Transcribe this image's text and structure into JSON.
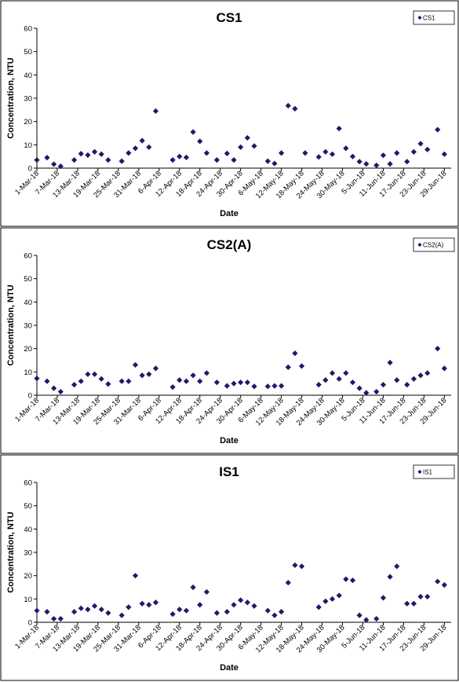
{
  "chart_data": [
    {
      "type": "scatter",
      "title": "CS1",
      "xlabel": "Date",
      "ylabel": "Concentration, NTU",
      "ylim": [
        0,
        60
      ],
      "yticks": [
        0,
        10,
        20,
        30,
        40,
        50,
        60
      ],
      "xlim": [
        "2018-03-01",
        "2018-07-01"
      ],
      "xtick_labels": [
        "1-Mar-18",
        "7-Mar-18",
        "13-Mar-18",
        "19-Mar-18",
        "25-Mar-18",
        "31-Mar-18",
        "6-Apr-18",
        "12-Apr-18",
        "18-Apr-18",
        "24-Apr-18",
        "30-Apr-18",
        "6-May-18",
        "12-May-18",
        "18-May-18",
        "24-May-18",
        "30-May-18",
        "5-Jun-18",
        "11-Jun-18",
        "17-Jun-18",
        "23-Jun-18",
        "29-Jun-18"
      ],
      "grid": false,
      "legend_position": "top-right",
      "marker_color": "#1f1a6b",
      "series": [
        {
          "name": "CS1",
          "x": [
            "2018-03-01",
            "2018-03-04",
            "2018-03-06",
            "2018-03-08",
            "2018-03-12",
            "2018-03-14",
            "2018-03-16",
            "2018-03-18",
            "2018-03-20",
            "2018-03-22",
            "2018-03-26",
            "2018-03-28",
            "2018-03-30",
            "2018-04-01",
            "2018-04-03",
            "2018-04-05",
            "2018-04-10",
            "2018-04-12",
            "2018-04-14",
            "2018-04-16",
            "2018-04-18",
            "2018-04-20",
            "2018-04-23",
            "2018-04-26",
            "2018-04-28",
            "2018-04-30",
            "2018-05-02",
            "2018-05-04",
            "2018-05-08",
            "2018-05-10",
            "2018-05-12",
            "2018-05-14",
            "2018-05-16",
            "2018-05-19",
            "2018-05-23",
            "2018-05-25",
            "2018-05-27",
            "2018-05-29",
            "2018-05-31",
            "2018-06-02",
            "2018-06-04",
            "2018-06-06",
            "2018-06-09",
            "2018-06-11",
            "2018-06-13",
            "2018-06-15",
            "2018-06-18",
            "2018-06-20",
            "2018-06-22",
            "2018-06-24",
            "2018-06-27",
            "2018-06-29"
          ],
          "y": [
            3.5,
            4.5,
            1.7,
            0.8,
            3.5,
            6.2,
            5.6,
            7.0,
            6.0,
            3.5,
            3.0,
            6.5,
            8.5,
            11.8,
            9.0,
            24.5,
            3.5,
            5.0,
            4.6,
            15.5,
            11.5,
            6.5,
            3.5,
            6.3,
            3.5,
            9.0,
            13.0,
            9.5,
            3.0,
            2.0,
            6.5,
            26.8,
            25.5,
            6.5,
            4.8,
            7.0,
            6.0,
            17.0,
            8.5,
            5.0,
            2.8,
            1.8,
            1.2,
            5.5,
            1.8,
            6.5,
            2.8,
            7.0,
            10.5,
            8.0,
            16.5,
            6.0
          ]
        }
      ]
    },
    {
      "type": "scatter",
      "title": "CS2(A)",
      "xlabel": "Date",
      "ylabel": "Concentration, NTU",
      "ylim": [
        0,
        60
      ],
      "yticks": [
        0,
        10,
        20,
        30,
        40,
        50,
        60
      ],
      "xlim": [
        "2018-03-01",
        "2018-07-01"
      ],
      "xtick_labels": [
        "1-Mar-18",
        "7-Mar-18",
        "13-Mar-18",
        "19-Mar-18",
        "25-Mar-18",
        "31-Mar-18",
        "6-Apr-18",
        "12-Apr-18",
        "18-Apr-18",
        "24-Apr-18",
        "30-Apr-18",
        "6-May-18",
        "12-May-18",
        "18-May-18",
        "24-May-18",
        "30-May-18",
        "5-Jun-18",
        "11-Jun-18",
        "17-Jun-18",
        "23-Jun-18",
        "29-Jun-18"
      ],
      "grid": false,
      "legend_position": "top-right",
      "marker_color": "#1f1a6b",
      "series": [
        {
          "name": "CS2(A)",
          "x": [
            "2018-03-01",
            "2018-03-04",
            "2018-03-06",
            "2018-03-08",
            "2018-03-12",
            "2018-03-14",
            "2018-03-16",
            "2018-03-18",
            "2018-03-20",
            "2018-03-22",
            "2018-03-26",
            "2018-03-28",
            "2018-03-30",
            "2018-04-01",
            "2018-04-03",
            "2018-04-05",
            "2018-04-10",
            "2018-04-12",
            "2018-04-14",
            "2018-04-16",
            "2018-04-18",
            "2018-04-20",
            "2018-04-23",
            "2018-04-26",
            "2018-04-28",
            "2018-04-30",
            "2018-05-02",
            "2018-05-04",
            "2018-05-08",
            "2018-05-10",
            "2018-05-12",
            "2018-05-14",
            "2018-05-16",
            "2018-05-18",
            "2018-05-23",
            "2018-05-25",
            "2018-05-27",
            "2018-05-29",
            "2018-05-31",
            "2018-06-02",
            "2018-06-04",
            "2018-06-06",
            "2018-06-09",
            "2018-06-11",
            "2018-06-13",
            "2018-06-15",
            "2018-06-18",
            "2018-06-20",
            "2018-06-22",
            "2018-06-24",
            "2018-06-27",
            "2018-06-29"
          ],
          "y": [
            7.2,
            6.0,
            3.0,
            1.5,
            4.5,
            6.0,
            9.0,
            9.0,
            7.0,
            4.8,
            6.0,
            6.0,
            13.0,
            8.5,
            9.0,
            11.5,
            3.5,
            6.5,
            6.0,
            8.5,
            6.0,
            9.5,
            5.5,
            4.0,
            5.0,
            5.5,
            5.5,
            3.8,
            3.8,
            4.0,
            4.0,
            12.0,
            18.0,
            12.5,
            4.5,
            6.5,
            9.5,
            7.0,
            9.5,
            5.5,
            3.0,
            1.0,
            1.5,
            4.5,
            14.0,
            6.5,
            4.5,
            7.0,
            8.5,
            9.5,
            20.0,
            11.5
          ]
        }
      ]
    },
    {
      "type": "scatter",
      "title": "IS1",
      "xlabel": "Date",
      "ylabel": "Concentration, NTU",
      "ylim": [
        0,
        60
      ],
      "yticks": [
        0,
        10,
        20,
        30,
        40,
        50,
        60
      ],
      "xlim": [
        "2018-03-01",
        "2018-07-01"
      ],
      "xtick_labels": [
        "1-Mar-18",
        "7-Mar-18",
        "13-Mar-18",
        "19-Mar-18",
        "25-Mar-18",
        "31-Mar-18",
        "6-Apr-18",
        "12-Apr-18",
        "18-Apr-18",
        "24-Apr-18",
        "30-Apr-18",
        "6-May-18",
        "12-May-18",
        "18-May-18",
        "24-May-18",
        "30-May-18",
        "5-Jun-18",
        "11-Jun-18",
        "17-Jun-18",
        "23-Jun-18",
        "29-Jun-18"
      ],
      "grid": false,
      "legend_position": "top-right",
      "marker_color": "#1f1a6b",
      "series": [
        {
          "name": "IS1",
          "x": [
            "2018-03-01",
            "2018-03-04",
            "2018-03-06",
            "2018-03-08",
            "2018-03-12",
            "2018-03-14",
            "2018-03-16",
            "2018-03-18",
            "2018-03-20",
            "2018-03-22",
            "2018-03-26",
            "2018-03-28",
            "2018-03-30",
            "2018-04-01",
            "2018-04-03",
            "2018-04-05",
            "2018-04-10",
            "2018-04-12",
            "2018-04-14",
            "2018-04-16",
            "2018-04-18",
            "2018-04-20",
            "2018-04-23",
            "2018-04-26",
            "2018-04-28",
            "2018-04-30",
            "2018-05-02",
            "2018-05-04",
            "2018-05-08",
            "2018-05-10",
            "2018-05-12",
            "2018-05-14",
            "2018-05-16",
            "2018-05-18",
            "2018-05-23",
            "2018-05-25",
            "2018-05-27",
            "2018-05-29",
            "2018-05-31",
            "2018-06-02",
            "2018-06-04",
            "2018-06-06",
            "2018-06-09",
            "2018-06-11",
            "2018-06-13",
            "2018-06-15",
            "2018-06-18",
            "2018-06-20",
            "2018-06-22",
            "2018-06-24",
            "2018-06-27",
            "2018-06-29"
          ],
          "y": [
            5.0,
            4.5,
            1.5,
            1.5,
            4.5,
            6.0,
            5.5,
            7.0,
            5.5,
            4.0,
            3.0,
            6.5,
            20.0,
            8.0,
            7.5,
            8.5,
            3.5,
            5.5,
            5.0,
            15.0,
            7.5,
            13.0,
            4.0,
            4.5,
            7.5,
            9.5,
            8.5,
            7.0,
            5.0,
            3.0,
            4.5,
            17.0,
            24.5,
            24.0,
            6.5,
            9.0,
            10.0,
            11.5,
            18.5,
            18.0,
            3.0,
            1.0,
            1.5,
            10.5,
            19.5,
            24.0,
            8.0,
            8.0,
            11.0,
            11.0,
            17.5,
            16.0
          ]
        }
      ]
    }
  ]
}
